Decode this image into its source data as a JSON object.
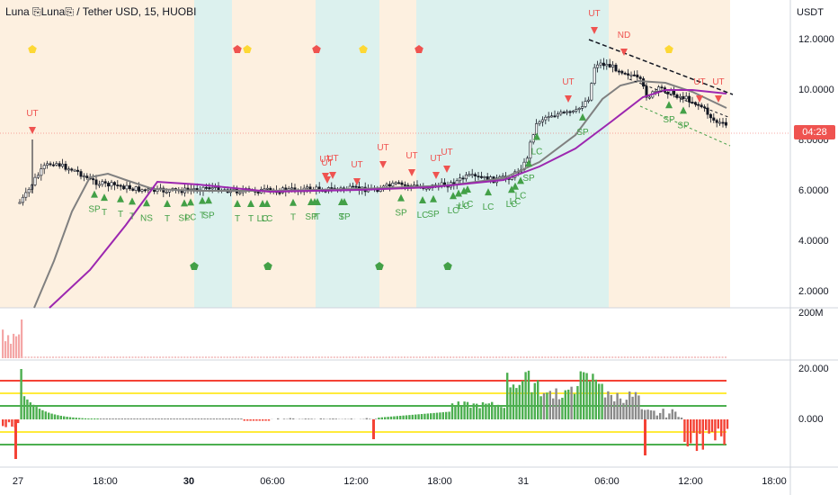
{
  "header": {
    "title": "Luna ⎘Luna⎘ / Tether USD, 15, HUOBI"
  },
  "price_axis": {
    "unit": "USDT",
    "ticks": [
      "12.0000",
      "10.0000",
      "8.0000",
      "6.0000",
      "4.0000",
      "2.0000"
    ],
    "last_price_badge": "04:28"
  },
  "volume_axis": {
    "label": "200M"
  },
  "oscillator_axis": {
    "ticks": [
      "20.000",
      "0.000"
    ]
  },
  "time_axis": {
    "ticks": [
      {
        "label": "27",
        "bold": false
      },
      {
        "label": "18:00",
        "bold": false
      },
      {
        "label": "30",
        "bold": true
      },
      {
        "label": "06:00",
        "bold": false
      },
      {
        "label": "12:00",
        "bold": false
      },
      {
        "label": "18:00",
        "bold": false
      },
      {
        "label": "31",
        "bold": false
      },
      {
        "label": "06:00",
        "bold": false
      },
      {
        "label": "12:00",
        "bold": false
      },
      {
        "label": "18:00",
        "bold": false
      }
    ]
  },
  "signals": {
    "sell_labels": [
      "UT",
      "UT",
      "ND",
      "UT",
      "UT",
      "UT",
      "UT",
      "UT",
      "UT",
      "UT",
      "UT",
      "UT",
      "UT",
      "UT"
    ],
    "buy_labels": [
      "SP",
      "T",
      "T",
      "T",
      "NS",
      "T",
      "SP",
      "LC",
      "T",
      "SP",
      "T",
      "T",
      "LC",
      "LC",
      "T",
      "SP",
      "T",
      "T",
      "T",
      "SP",
      "SP",
      "LC",
      "SP",
      "LC",
      "T",
      "LC",
      "LC",
      "LC",
      "LC",
      "LC",
      "LC",
      "SP",
      "LC",
      "SP",
      "SP",
      "SP"
    ]
  },
  "colors": {
    "up": "#26a69a",
    "down": "#ef5350",
    "buy_signal": "#43a047",
    "sell_signal": "#ef5350",
    "ma_gray": "#808080",
    "ma_purple": "#9c27b0",
    "band_orange": "#fdf0e0",
    "band_teal": "#dcf1ee",
    "level_red": "#f44336",
    "level_yellow": "#ffeb3b",
    "level_green": "#4caf50",
    "hist_green": "#4caf50",
    "hist_gray": "#8a8a8a",
    "hist_red": "#f44336"
  }
}
